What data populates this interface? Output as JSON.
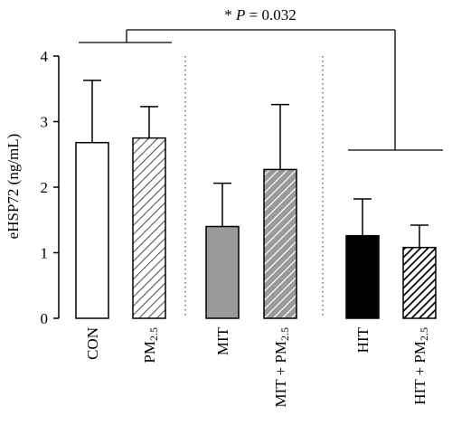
{
  "chart_data": {
    "type": "bar",
    "ylabel": "eHSP72 (ng/mL)",
    "ylim": [
      0,
      4
    ],
    "yticks": [
      0,
      1,
      2,
      3,
      4
    ],
    "grid": false,
    "categories": [
      {
        "label": "CON",
        "sub": "",
        "suffix": ""
      },
      {
        "label": "PM",
        "sub": "2.5",
        "suffix": ""
      },
      {
        "label": "MIT",
        "sub": "",
        "suffix": ""
      },
      {
        "label": "MIT + PM",
        "sub": "2.5",
        "suffix": ""
      },
      {
        "label": "HIT",
        "sub": "",
        "suffix": ""
      },
      {
        "label": "HIT + PM",
        "sub": "2.5",
        "suffix": ""
      }
    ],
    "values": [
      2.68,
      2.75,
      1.4,
      2.27,
      1.26,
      1.08
    ],
    "error_upper": [
      3.63,
      3.23,
      2.06,
      3.26,
      1.82,
      1.42
    ],
    "styles": [
      {
        "fill": "#ffffff",
        "pattern": "none",
        "hatch_color": ""
      },
      {
        "fill": "#ffffff",
        "pattern": "hatch",
        "hatch_color": "#555555"
      },
      {
        "fill": "#9a9a9a",
        "pattern": "none",
        "hatch_color": ""
      },
      {
        "fill": "#9a9a9a",
        "pattern": "hatch",
        "hatch_color": "#ffffff"
      },
      {
        "fill": "#000000",
        "pattern": "none",
        "hatch_color": ""
      },
      {
        "fill": "#ffffff",
        "pattern": "hatch-dense",
        "hatch_color": "#000000"
      }
    ],
    "group_separators": "dotted",
    "annotation": {
      "star": "*",
      "label": "P",
      "text": " = 0.032",
      "from_groups": [
        0,
        1
      ],
      "to_groups": [
        4,
        5
      ]
    }
  }
}
